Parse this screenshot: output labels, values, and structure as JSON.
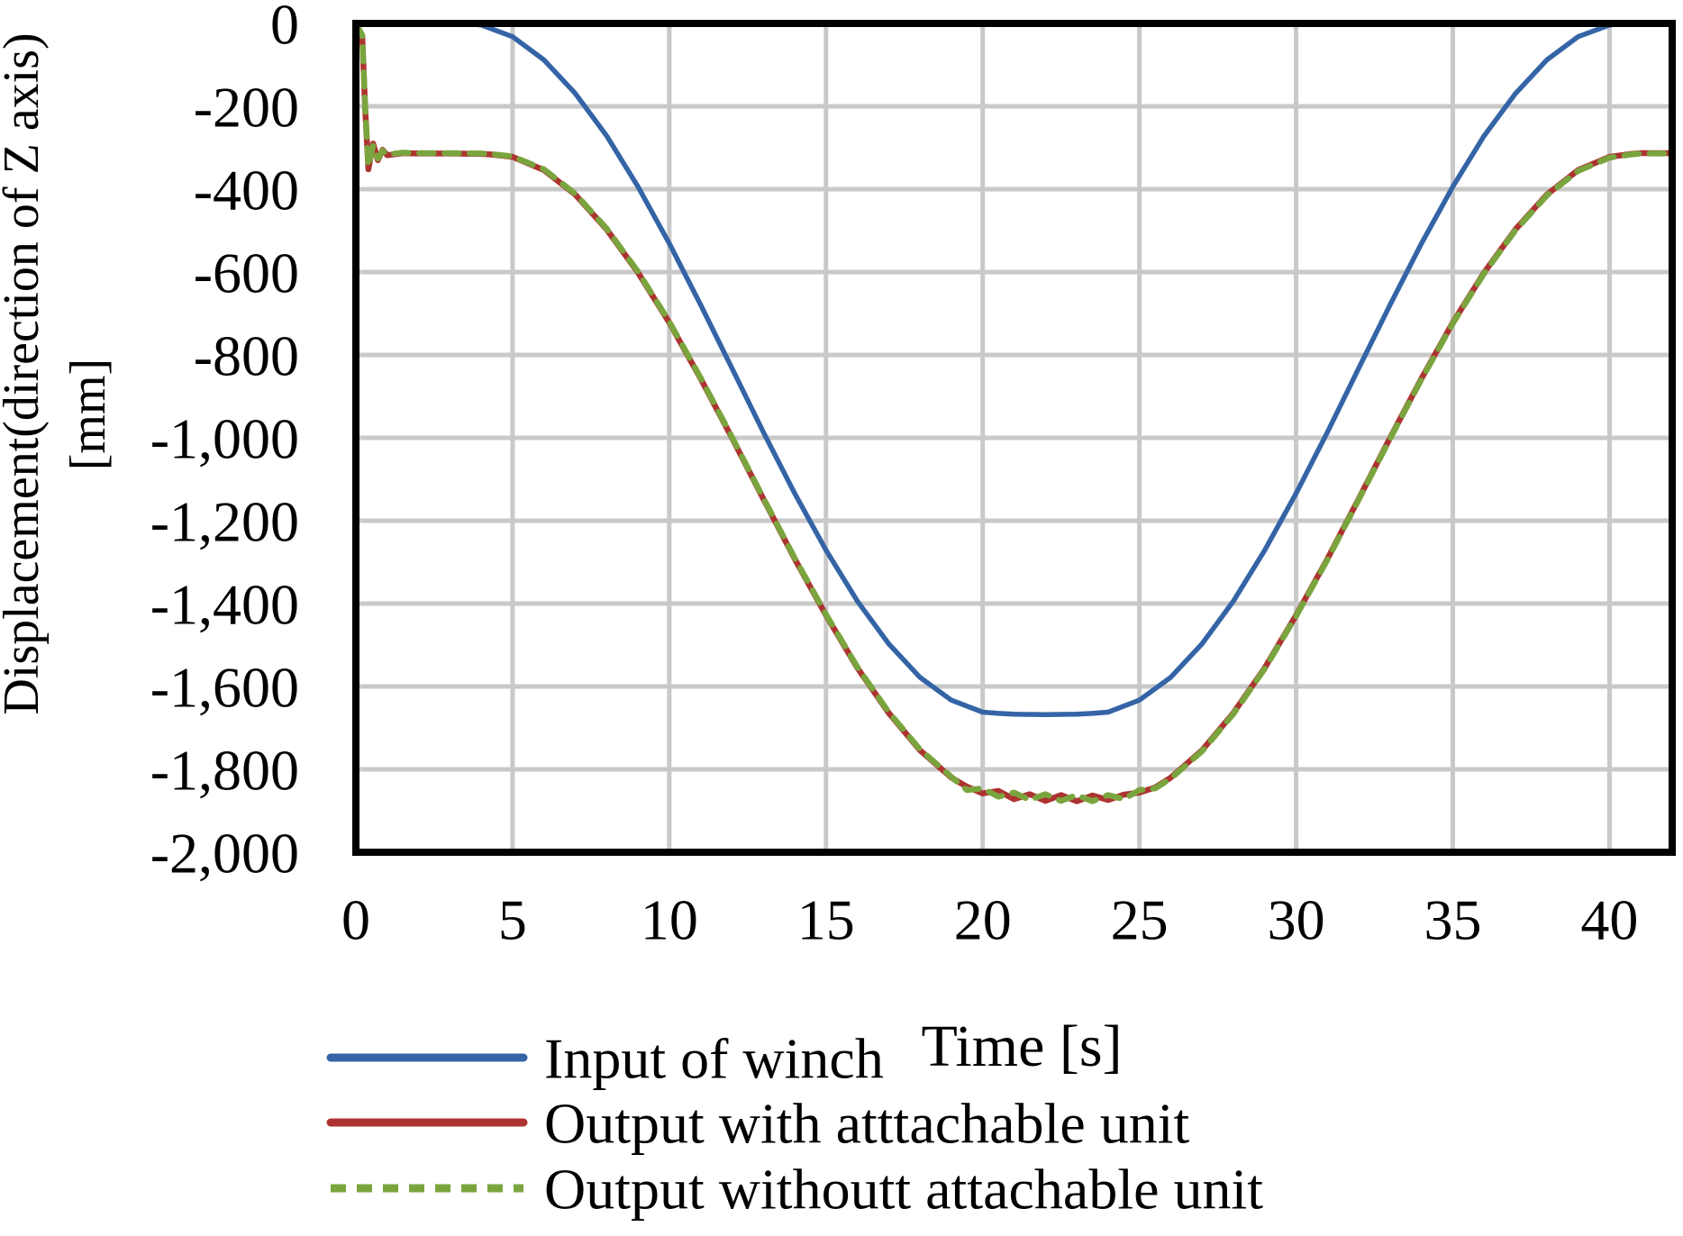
{
  "axes": {
    "x": {
      "title": "Time [s]",
      "min": 0,
      "max": 42,
      "tick_labels": [
        "0",
        "5",
        "10",
        "15",
        "20",
        "25",
        "30",
        "35",
        "40"
      ],
      "tick_values": [
        0,
        5,
        10,
        15,
        20,
        25,
        30,
        35,
        40
      ]
    },
    "y": {
      "title": "Displacement(direction of Z axis)",
      "unit": "[mm]",
      "min": -2000,
      "max": 0,
      "tick_labels": [
        "0",
        "-200",
        "-400",
        "-600",
        "-800",
        "-1,000",
        "-1,200",
        "-1,400",
        "-1,600",
        "-1,800",
        "-2,000"
      ],
      "tick_values": [
        0,
        -200,
        -400,
        -600,
        -800,
        -1000,
        -1200,
        -1400,
        -1600,
        -1800,
        -2000
      ]
    }
  },
  "colors": {
    "plot_border": "#000000",
    "gridline": "#c9c9c9",
    "background": "#ffffff",
    "blue_series": "#3464a6",
    "red_series": "#ad3331",
    "green_series": "#7aa53e"
  },
  "legend": {
    "items": [
      {
        "label": "Input of winch",
        "color": "#3464a6",
        "style": "solid"
      },
      {
        "label": "Output with atttachable unit",
        "color": "#ad3331",
        "style": "solid"
      },
      {
        "label": "Output withoutt attachable unit",
        "color": "#7aa53e",
        "style": "dashed"
      }
    ]
  },
  "chart_data": {
    "type": "line",
    "title": "",
    "xlabel": "Time [s]",
    "ylabel": "Displacement(direction of Z axis) [mm]",
    "xlim": [
      0,
      42
    ],
    "ylim": [
      -2000,
      0
    ],
    "x_ticks": [
      0,
      5,
      10,
      15,
      20,
      25,
      30,
      35,
      40
    ],
    "y_ticks": [
      0,
      -200,
      -400,
      -600,
      -800,
      -1000,
      -1200,
      -1400,
      -1600,
      -1800,
      -2000
    ],
    "grid": true,
    "legend_position": "below-left",
    "series": [
      {
        "name": "Input of winch",
        "color": "#3464a6",
        "style": "solid",
        "width": 5.5,
        "points": [
          [
            0,
            0
          ],
          [
            1,
            0
          ],
          [
            2,
            0
          ],
          [
            3,
            0
          ],
          [
            3.5,
            0
          ],
          [
            4,
            -4
          ],
          [
            5,
            -32
          ],
          [
            6,
            -88
          ],
          [
            7,
            -169
          ],
          [
            8,
            -271
          ],
          [
            9,
            -394
          ],
          [
            10,
            -531
          ],
          [
            11,
            -679
          ],
          [
            12,
            -832
          ],
          [
            13,
            -986
          ],
          [
            14,
            -1134
          ],
          [
            15,
            -1271
          ],
          [
            16,
            -1394
          ],
          [
            17,
            -1497
          ],
          [
            18,
            -1578
          ],
          [
            19,
            -1633
          ],
          [
            20,
            -1662
          ],
          [
            20.5,
            -1665
          ],
          [
            21,
            -1667
          ],
          [
            22,
            -1668
          ],
          [
            23,
            -1667
          ],
          [
            23.5,
            -1665
          ],
          [
            24,
            -1662
          ],
          [
            25,
            -1633
          ],
          [
            26,
            -1578
          ],
          [
            27,
            -1497
          ],
          [
            28,
            -1394
          ],
          [
            29,
            -1271
          ],
          [
            30,
            -1134
          ],
          [
            31,
            -986
          ],
          [
            32,
            -832
          ],
          [
            33,
            -679
          ],
          [
            34,
            -531
          ],
          [
            35,
            -394
          ],
          [
            36,
            -271
          ],
          [
            37,
            -169
          ],
          [
            38,
            -88
          ],
          [
            39,
            -32
          ],
          [
            40,
            -4
          ],
          [
            40.5,
            0
          ],
          [
            41,
            0
          ],
          [
            42,
            0
          ]
        ]
      },
      {
        "name": "Output with atttachable unit",
        "color": "#ad3331",
        "style": "solid",
        "width": 6.5,
        "points": [
          [
            0,
            0
          ],
          [
            0.2,
            -30
          ],
          [
            0.3,
            -210
          ],
          [
            0.4,
            -352
          ],
          [
            0.55,
            -290
          ],
          [
            0.7,
            -330
          ],
          [
            0.85,
            -305
          ],
          [
            1,
            -318
          ],
          [
            1.5,
            -313
          ],
          [
            2,
            -314
          ],
          [
            3,
            -314
          ],
          [
            4,
            -315
          ],
          [
            4.3,
            -316
          ],
          [
            5,
            -322
          ],
          [
            6,
            -354
          ],
          [
            7,
            -413
          ],
          [
            8,
            -497
          ],
          [
            9,
            -601
          ],
          [
            10,
            -722
          ],
          [
            11,
            -857
          ],
          [
            12,
            -1000
          ],
          [
            13,
            -1147
          ],
          [
            14,
            -1292
          ],
          [
            15,
            -1428
          ],
          [
            16,
            -1555
          ],
          [
            17,
            -1664
          ],
          [
            18,
            -1754
          ],
          [
            19,
            -1820
          ],
          [
            19.5,
            -1842
          ],
          [
            20,
            -1858
          ],
          [
            20.5,
            -1852
          ],
          [
            21,
            -1872
          ],
          [
            21.5,
            -1860
          ],
          [
            22,
            -1876
          ],
          [
            22.5,
            -1862
          ],
          [
            23,
            -1877
          ],
          [
            23.5,
            -1863
          ],
          [
            24,
            -1874
          ],
          [
            24.5,
            -1861
          ],
          [
            25,
            -1856
          ],
          [
            25.5,
            -1844
          ],
          [
            26,
            -1820
          ],
          [
            27,
            -1754
          ],
          [
            28,
            -1664
          ],
          [
            29,
            -1555
          ],
          [
            30,
            -1428
          ],
          [
            31,
            -1292
          ],
          [
            32,
            -1147
          ],
          [
            33,
            -1000
          ],
          [
            34,
            -857
          ],
          [
            35,
            -722
          ],
          [
            36,
            -601
          ],
          [
            37,
            -497
          ],
          [
            38,
            -413
          ],
          [
            39,
            -354
          ],
          [
            40,
            -322
          ],
          [
            40.7,
            -315
          ],
          [
            41,
            -313
          ],
          [
            42,
            -313
          ]
        ]
      },
      {
        "name": "Output withoutt attachable unit",
        "color": "#7aa53e",
        "style": "dashed",
        "width": 6.5,
        "points": [
          [
            0,
            0
          ],
          [
            0.2,
            -28
          ],
          [
            0.3,
            -205
          ],
          [
            0.4,
            -345
          ],
          [
            0.55,
            -295
          ],
          [
            0.7,
            -326
          ],
          [
            0.85,
            -307
          ],
          [
            1,
            -316
          ],
          [
            1.5,
            -312
          ],
          [
            2,
            -313
          ],
          [
            3,
            -313
          ],
          [
            4,
            -314
          ],
          [
            4.3,
            -315
          ],
          [
            5,
            -321
          ],
          [
            6,
            -352
          ],
          [
            7,
            -411
          ],
          [
            8,
            -495
          ],
          [
            9,
            -599
          ],
          [
            10,
            -720
          ],
          [
            11,
            -855
          ],
          [
            12,
            -998
          ],
          [
            13,
            -1145
          ],
          [
            14,
            -1290
          ],
          [
            15,
            -1426
          ],
          [
            16,
            -1553
          ],
          [
            17,
            -1662
          ],
          [
            18,
            -1752
          ],
          [
            19,
            -1818
          ],
          [
            19.5,
            -1850
          ],
          [
            20,
            -1846
          ],
          [
            20.5,
            -1866
          ],
          [
            21,
            -1856
          ],
          [
            21.5,
            -1874
          ],
          [
            22,
            -1860
          ],
          [
            22.5,
            -1876
          ],
          [
            23,
            -1862
          ],
          [
            23.5,
            -1877
          ],
          [
            24,
            -1862
          ],
          [
            24.5,
            -1872
          ],
          [
            25,
            -1850
          ],
          [
            25.5,
            -1846
          ],
          [
            26,
            -1822
          ],
          [
            27,
            -1756
          ],
          [
            28,
            -1666
          ],
          [
            29,
            -1557
          ],
          [
            30,
            -1430
          ],
          [
            31,
            -1294
          ],
          [
            32,
            -1149
          ],
          [
            33,
            -1002
          ],
          [
            34,
            -859
          ],
          [
            35,
            -724
          ],
          [
            36,
            -603
          ],
          [
            37,
            -499
          ],
          [
            38,
            -415
          ],
          [
            39,
            -356
          ],
          [
            40,
            -324
          ],
          [
            40.7,
            -316
          ],
          [
            41,
            -314
          ],
          [
            42,
            -314
          ]
        ]
      }
    ]
  }
}
